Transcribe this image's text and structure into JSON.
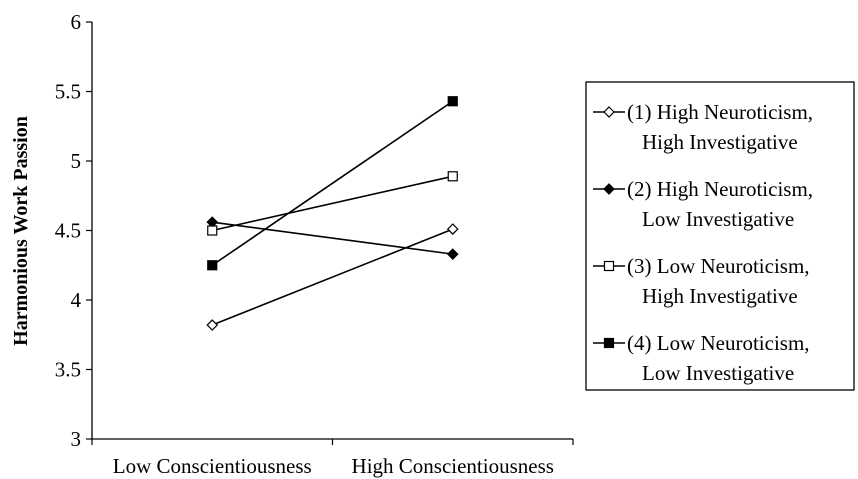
{
  "chart_data": {
    "type": "line",
    "title": "",
    "xlabel": "",
    "ylabel": "Harmonious Work Passion",
    "categories": [
      "Low Conscientiousness",
      "High Conscientiousness"
    ],
    "ylim": [
      3,
      6
    ],
    "yticks": [
      "3",
      "3.5",
      "4",
      "4.5",
      "5",
      "5.5",
      "6"
    ],
    "grid": false,
    "legend_position": "right",
    "series": [
      {
        "name": "(1) High Neuroticism, High Investigative",
        "legend_lines": [
          "(1) High Neuroticism,",
          "High Investigative"
        ],
        "values": [
          3.82,
          4.51
        ],
        "marker": "diamond-open",
        "color": "#000000"
      },
      {
        "name": "(2) High Neuroticism, Low Investigative",
        "legend_lines": [
          "(2) High Neuroticism,",
          "Low Investigative"
        ],
        "values": [
          4.56,
          4.33
        ],
        "marker": "diamond-filled",
        "color": "#000000"
      },
      {
        "name": "(3) Low Neuroticism, High Investigative",
        "legend_lines": [
          "(3) Low Neuroticism,",
          "High Investigative"
        ],
        "values": [
          4.5,
          4.89
        ],
        "marker": "square-open",
        "color": "#000000"
      },
      {
        "name": "(4) Low Neuroticism, Low Investigative",
        "legend_lines": [
          "(4) Low Neuroticism,",
          "Low Investigative"
        ],
        "values": [
          4.25,
          5.43
        ],
        "marker": "square-filled",
        "color": "#000000"
      }
    ]
  }
}
